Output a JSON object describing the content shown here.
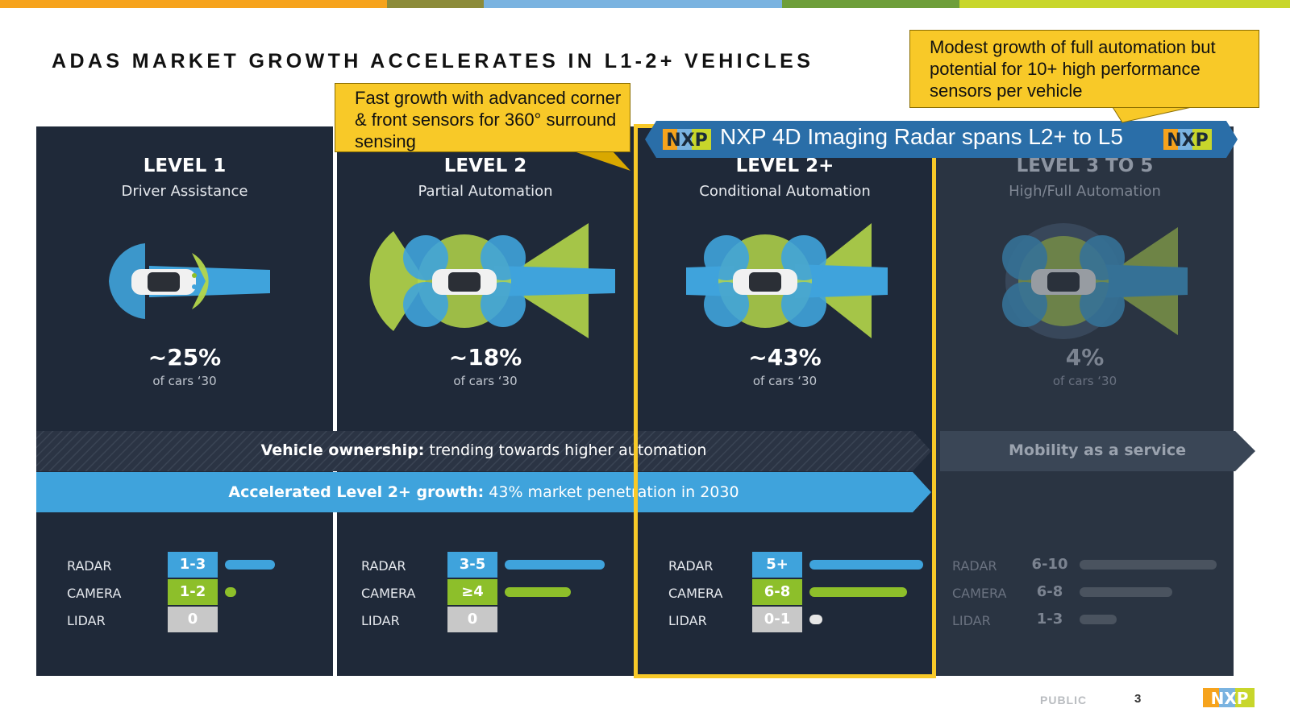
{
  "header": {
    "title": "ADAS MARKET GROWTH ACCELERATES IN L1-2+ VEHICLES",
    "top_bar_colors": [
      "#f6a31c",
      "#8c8b3a",
      "#7ab3e0",
      "#6e9e3a",
      "#c8d62b"
    ]
  },
  "callouts": {
    "left": "Fast growth with advanced corner & front sensors for 360° surround sensing",
    "right": "Modest growth of full automation but potential for 10+ high performance sensors per vehicle"
  },
  "nxp_banner": {
    "text": "NXP 4D Imaging Radar spans L2+ to L5",
    "logo_text": "NXP"
  },
  "levels": [
    {
      "title": "LEVEL 1",
      "subtitle": "Driver Assistance",
      "percent": "~25%",
      "percent_sub": "of cars ‘30",
      "sensors": [
        {
          "label": "RADAR",
          "value": "1-3"
        },
        {
          "label": "CAMERA",
          "value": "1-2"
        },
        {
          "label": "LIDAR",
          "value": "0"
        }
      ]
    },
    {
      "title": "LEVEL 2",
      "subtitle": "Partial Automation",
      "percent": "~18%",
      "percent_sub": "of cars ‘30",
      "sensors": [
        {
          "label": "RADAR",
          "value": "3-5"
        },
        {
          "label": "CAMERA",
          "value": "≥4"
        },
        {
          "label": "LIDAR",
          "value": "0"
        }
      ]
    },
    {
      "title": "LEVEL 2+",
      "subtitle": "Conditional Automation",
      "percent": "~43%",
      "percent_sub": "of cars ‘30",
      "sensors": [
        {
          "label": "RADAR",
          "value": "5+"
        },
        {
          "label": "CAMERA",
          "value": "6-8"
        },
        {
          "label": "LIDAR",
          "value": "0-1"
        }
      ]
    },
    {
      "title": "LEVEL 3 TO 5",
      "subtitle": "High/Full Automation",
      "percent": "4%",
      "percent_sub": "of cars ‘30",
      "sensors": [
        {
          "label": "RADAR",
          "value": "6-10"
        },
        {
          "label": "CAMERA",
          "value": "6-8"
        },
        {
          "label": "LIDAR",
          "value": "1-3"
        }
      ]
    }
  ],
  "ribbons": {
    "ownership_bold": "Vehicle ownership:",
    "ownership_rest": " trending towards higher automation",
    "growth_bold": "Accelerated Level 2+ growth:",
    "growth_rest": " 43% market penetration in 2030",
    "mobility": "Mobility as a service"
  },
  "colors": {
    "radar": "#3fa3dc",
    "camera": "#8dbf2a",
    "lidar": "#c8c8c8",
    "panel": "#1f2939",
    "highlight": "#f8c928"
  },
  "footer": {
    "classification": "PUBLIC",
    "page": "3",
    "logo_text": "NXP"
  }
}
